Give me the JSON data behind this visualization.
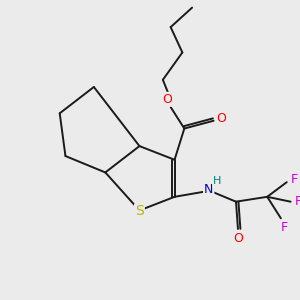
{
  "background_color": "#ebebeb",
  "bond_color": "#1a1a1a",
  "atom_colors": {
    "O": "#ff0000",
    "S": "#b8b800",
    "N": "#0000cc",
    "H": "#008080",
    "F": "#cc00cc"
  },
  "figsize": [
    3.0,
    3.0
  ],
  "dpi": 100
}
